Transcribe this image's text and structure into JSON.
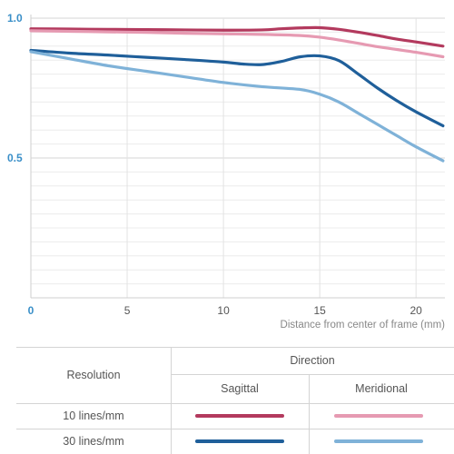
{
  "chart_data": {
    "type": "line",
    "xlabel": "Distance from center of frame (mm)",
    "xlim": [
      0,
      21.5
    ],
    "ylim": [
      0,
      1.0
    ],
    "x_ticks": [
      0,
      5,
      10,
      15,
      20
    ],
    "y_ticks": [
      {
        "value": 0.5,
        "label": "0.5"
      },
      {
        "value": 1.0,
        "label": "1.0"
      }
    ],
    "zero_label": "0",
    "series": [
      {
        "resolution": "10 lines/mm",
        "direction": "Sagittal",
        "color": "#b33a5e",
        "x": [
          0,
          2,
          4,
          6,
          8,
          10,
          12,
          13,
          14,
          15,
          16,
          17,
          18,
          19,
          20,
          21.4
        ],
        "y": [
          0.962,
          0.961,
          0.96,
          0.959,
          0.958,
          0.957,
          0.958,
          0.962,
          0.965,
          0.966,
          0.96,
          0.95,
          0.938,
          0.925,
          0.915,
          0.9
        ]
      },
      {
        "resolution": "10 lines/mm",
        "direction": "Meridional",
        "color": "#e69ab2",
        "x": [
          0,
          2,
          4,
          6,
          8,
          10,
          12,
          14,
          15,
          16,
          17,
          18,
          19,
          20,
          21.4
        ],
        "y": [
          0.955,
          0.953,
          0.951,
          0.949,
          0.946,
          0.944,
          0.942,
          0.938,
          0.932,
          0.922,
          0.91,
          0.898,
          0.888,
          0.878,
          0.862
        ]
      },
      {
        "resolution": "30 lines/mm",
        "direction": "Sagittal",
        "color": "#1f5f9a",
        "x": [
          0,
          2,
          4,
          6,
          8,
          10,
          11,
          12,
          13,
          14,
          15,
          16,
          17,
          18,
          19,
          20,
          21.4
        ],
        "y": [
          0.885,
          0.875,
          0.868,
          0.86,
          0.852,
          0.843,
          0.836,
          0.834,
          0.845,
          0.862,
          0.865,
          0.848,
          0.8,
          0.75,
          0.705,
          0.665,
          0.615
        ]
      },
      {
        "resolution": "30 lines/mm",
        "direction": "Meridional",
        "color": "#7fb2d8",
        "x": [
          0,
          2,
          4,
          6,
          8,
          10,
          12,
          14,
          15,
          16,
          17,
          18,
          19,
          20,
          21.4
        ],
        "y": [
          0.88,
          0.855,
          0.83,
          0.81,
          0.79,
          0.77,
          0.755,
          0.745,
          0.728,
          0.7,
          0.66,
          0.62,
          0.58,
          0.54,
          0.49
        ]
      }
    ]
  },
  "legend": {
    "resolution_header": "Resolution",
    "direction_header": "Direction",
    "sagittal_header": "Sagittal",
    "meridional_header": "Meridional",
    "rows": [
      {
        "label": "10 lines/mm",
        "sagittal_color": "#b33a5e",
        "meridional_color": "#e69ab2"
      },
      {
        "label": "30 lines/mm",
        "sagittal_color": "#1f5f9a",
        "meridional_color": "#7fb2d8"
      }
    ]
  }
}
